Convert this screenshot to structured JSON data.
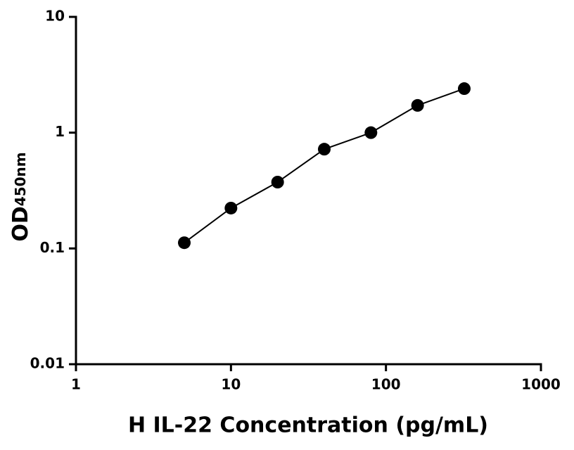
{
  "chart_data": {
    "type": "scatter",
    "x_label": "H IL-22 Concentration (pg/mL)",
    "y_label": "OD",
    "y_label_sub": "450nm",
    "x": [
      5,
      10,
      20,
      40,
      80,
      160,
      320
    ],
    "series": [
      {
        "values": [
          0.112,
          0.223,
          0.374,
          0.72,
          1.0,
          1.72,
          2.4
        ],
        "color": "#000000"
      }
    ],
    "xlim": [
      1,
      1000
    ],
    "ylim": [
      0.01,
      10
    ],
    "xticks": [
      1,
      10,
      100,
      1000
    ],
    "yticks": [
      0.01,
      0.1,
      1,
      10
    ],
    "xscale": "log",
    "yscale": "log",
    "grid": false
  }
}
